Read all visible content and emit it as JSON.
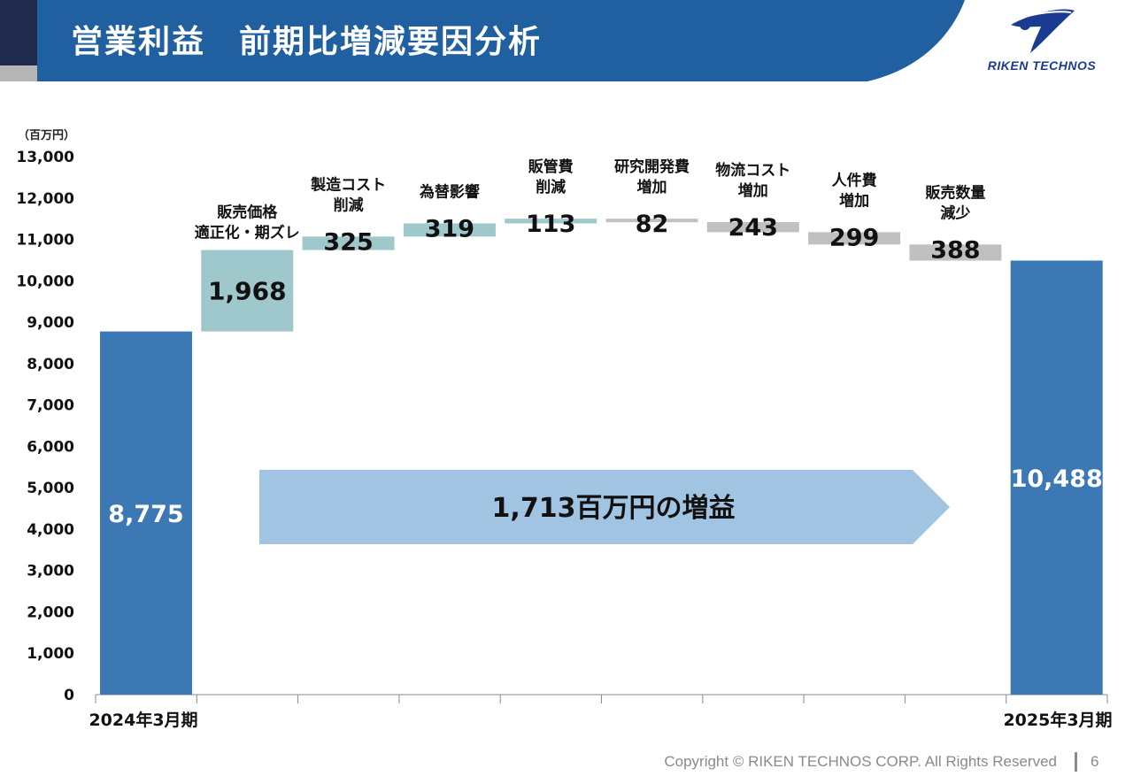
{
  "header": {
    "title": "営業利益　前期比増減要因分析",
    "logo_text": "RIKEN TECHNOS",
    "colors": {
      "band": "#2160a0",
      "accent_dark": "#1f2a4e",
      "accent_gray": "#b6b6b6"
    }
  },
  "chart_data": {
    "type": "waterfall",
    "unit_label": "（百万円）",
    "ylim": [
      0,
      13000
    ],
    "yticks": [
      "0",
      "1,000",
      "2,000",
      "3,000",
      "4,000",
      "5,000",
      "6,000",
      "7,000",
      "8,000",
      "9,000",
      "10,000",
      "11,000",
      "12,000",
      "13,000"
    ],
    "start": {
      "category": "2024年3月期",
      "value": 8775,
      "label": "8,775",
      "color": "#3b78b4"
    },
    "end": {
      "category": "2025年3月期",
      "value": 10488,
      "label": "10,488",
      "color": "#3b78b4"
    },
    "steps": [
      {
        "name": [
          "販売価格",
          "適正化・期ズレ"
        ],
        "delta": 1968,
        "label": "1,968",
        "color": "#9fc8cd"
      },
      {
        "name": [
          "製造コスト",
          "削減"
        ],
        "delta": 325,
        "label": "325",
        "color": "#9fc8cd"
      },
      {
        "name": [
          "為替影響"
        ],
        "delta": 319,
        "label": "319",
        "color": "#9fc8cd"
      },
      {
        "name": [
          "販管費",
          "削減"
        ],
        "delta": 113,
        "label": "113",
        "color": "#9fc8cd"
      },
      {
        "name": [
          "研究開発費",
          "増加"
        ],
        "delta": -82,
        "label": "82",
        "color": "#c0c0c0"
      },
      {
        "name": [
          "物流コスト",
          "増加"
        ],
        "delta": -243,
        "label": "243",
        "color": "#c0c0c0"
      },
      {
        "name": [
          "人件費",
          "増加"
        ],
        "delta": -299,
        "label": "299",
        "color": "#c0c0c0"
      },
      {
        "name": [
          "販売数量",
          "減少"
        ],
        "delta": -388,
        "label": "388",
        "color": "#c0c0c0"
      }
    ],
    "annotation": {
      "text": "1,713百万円の増益",
      "color": "#a1c4e2"
    }
  },
  "footer": {
    "copyright": "Copyright © RIKEN TECHNOS CORP. All Rights Reserved",
    "page": "6"
  }
}
